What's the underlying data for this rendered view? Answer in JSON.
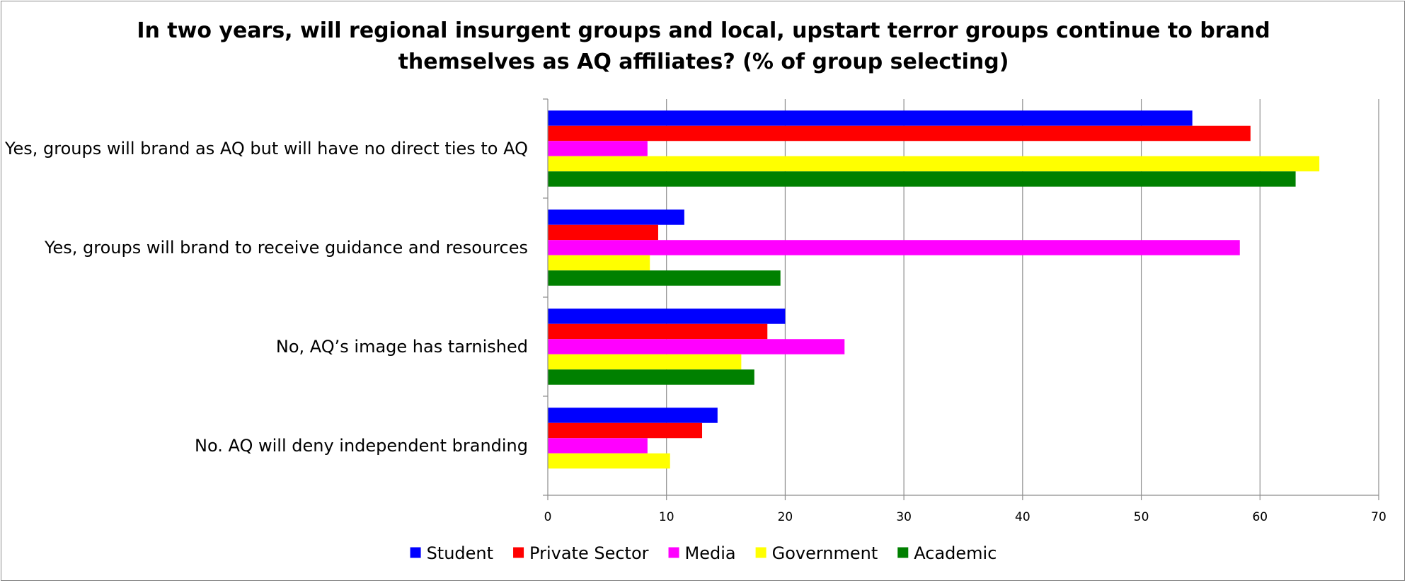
{
  "chart_data": {
    "type": "bar",
    "orientation": "horizontal",
    "title_lines": [
      "In two years, will regional insurgent groups and local, upstart terror groups continue to brand",
      "themselves as AQ affiliates? (% of group selecting)"
    ],
    "categories": [
      "Yes, groups will brand as AQ but will have no direct ties to AQ",
      "Yes, groups will brand to receive guidance and resources",
      "No, AQ’s image has tarnished",
      "No. AQ will deny independent branding"
    ],
    "series": [
      {
        "name": "Student",
        "color": "#0000FF",
        "values": [
          54.3,
          11.5,
          20.0,
          14.3
        ]
      },
      {
        "name": "Private Sector",
        "color": "#FF0000",
        "values": [
          59.2,
          9.3,
          18.5,
          13.0
        ]
      },
      {
        "name": "Media",
        "color": "#FF00FF",
        "values": [
          8.4,
          58.3,
          25.0,
          8.4
        ]
      },
      {
        "name": "Government",
        "color": "#FFFF00",
        "values": [
          65.0,
          8.6,
          16.3,
          10.3
        ]
      },
      {
        "name": "Academic",
        "color": "#008000",
        "values": [
          63.0,
          19.6,
          17.4,
          0
        ]
      }
    ],
    "xlim": [
      0,
      70
    ],
    "xticks": [
      0,
      10,
      20,
      30,
      40,
      50,
      60,
      70
    ],
    "grid": true,
    "legend": "bottom"
  }
}
